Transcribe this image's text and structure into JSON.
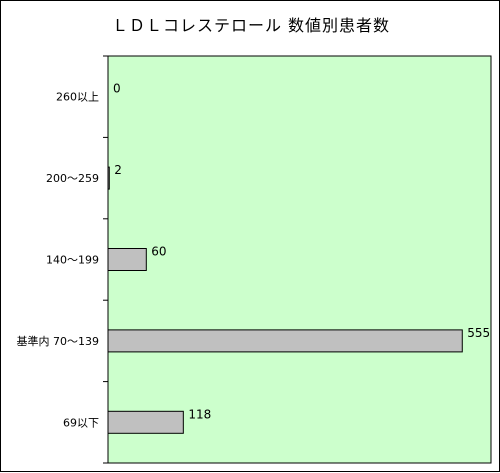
{
  "chart_data": {
    "type": "bar",
    "orientation": "horizontal",
    "title": "ＬＤＬコレステロール 数値別患者数",
    "categories": [
      "260以上",
      "200～259",
      "140～199",
      "基準内 70～139",
      "69以下"
    ],
    "values": [
      0,
      2,
      60,
      555,
      118
    ],
    "xlim": [
      0,
      600
    ],
    "grid": false,
    "legend": "none",
    "colors": {
      "plot_background": "#ccffcc",
      "bar_fill": "#c0c0c0",
      "bar_stroke": "#000000"
    }
  }
}
